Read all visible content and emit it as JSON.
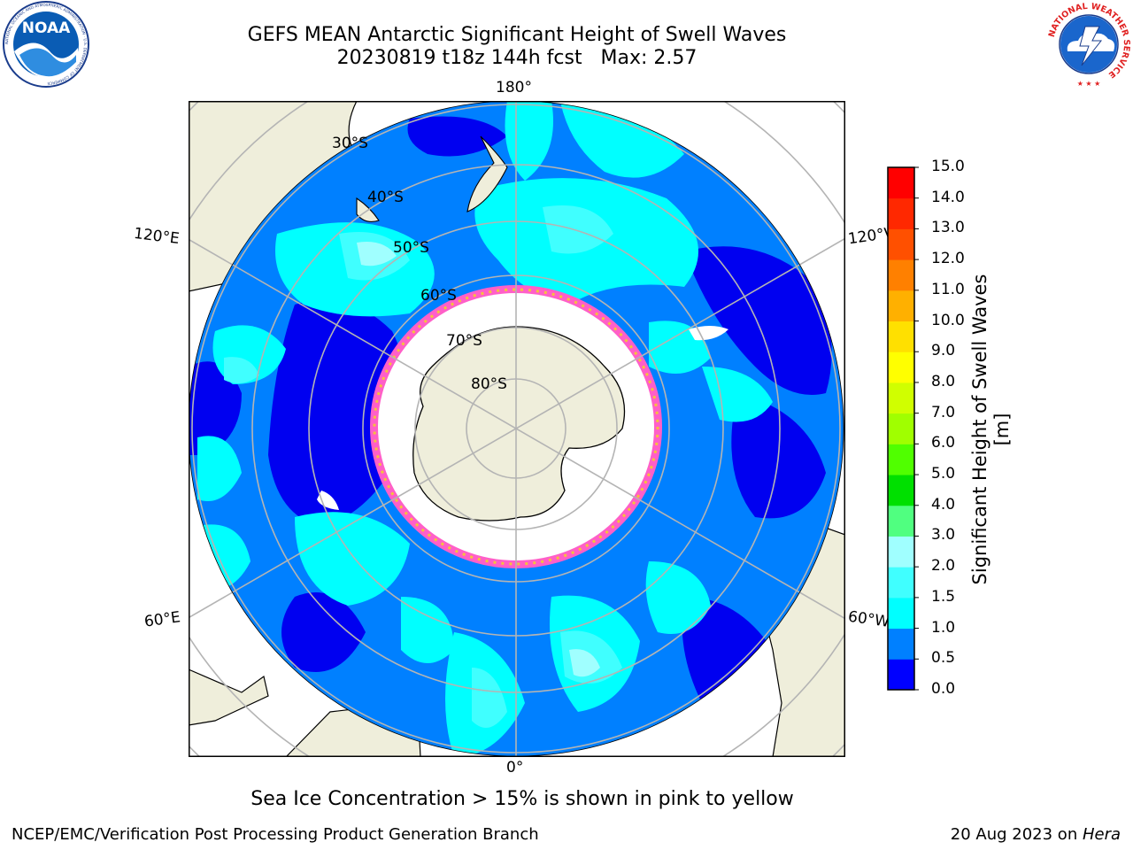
{
  "header": {
    "title_line1": "GEFS MEAN Antarctic Significant Height of Swell Waves",
    "title_line2": "20230819 t18z 144h fcst   Max: 2.57"
  },
  "logos": {
    "noaa_text": "NOAA",
    "noaa_ring_text": "NATIONAL OCEANIC AND ATMOSPHERIC ADMINISTRATION · U.S. DEPARTMENT OF COMMERCE",
    "nws_ring_text": "NATIONAL WEATHER SERVICE"
  },
  "map": {
    "longitude_labels": {
      "top": "180°",
      "bottom": "0°",
      "upper_left": "120°E",
      "upper_right": "120°W",
      "lower_left": "60°E",
      "lower_right": "60°W"
    },
    "latitude_labels": [
      "30°S",
      "40°S",
      "50°S",
      "60°S",
      "70°S",
      "80°S"
    ],
    "colors": {
      "land": "#efeedb",
      "ice_free": "#ffffff",
      "grid": "#b4b4b4",
      "ice_edge_pink": "#ff5fc8",
      "ice_edge_yellow": "#f5c23c"
    }
  },
  "colorbar": {
    "label": "Significant Height of Swell Waves [m]",
    "ticks": [
      "0.0",
      "0.5",
      "1.0",
      "1.5",
      "2.0",
      "3.0",
      "4.0",
      "5.0",
      "6.0",
      "7.0",
      "8.0",
      "9.0",
      "10.0",
      "11.0",
      "12.0",
      "13.0",
      "14.0",
      "15.0"
    ],
    "colors": [
      "#0000ff",
      "#0080ff",
      "#00ffff",
      "#40ffff",
      "#a0ffff",
      "#50ff80",
      "#00e000",
      "#50ff00",
      "#a0ff00",
      "#d0ff00",
      "#ffff00",
      "#ffe000",
      "#ffb000",
      "#ff8000",
      "#ff5000",
      "#ff2800",
      "#ff0000"
    ]
  },
  "caption": "Sea Ice Concentration > 15% is shown in pink to yellow",
  "footer": {
    "left": "NCEP/EMC/Verification Post Processing Product Generation Branch",
    "right_prefix": "20 Aug 2023 on ",
    "right_system": "Hera"
  }
}
